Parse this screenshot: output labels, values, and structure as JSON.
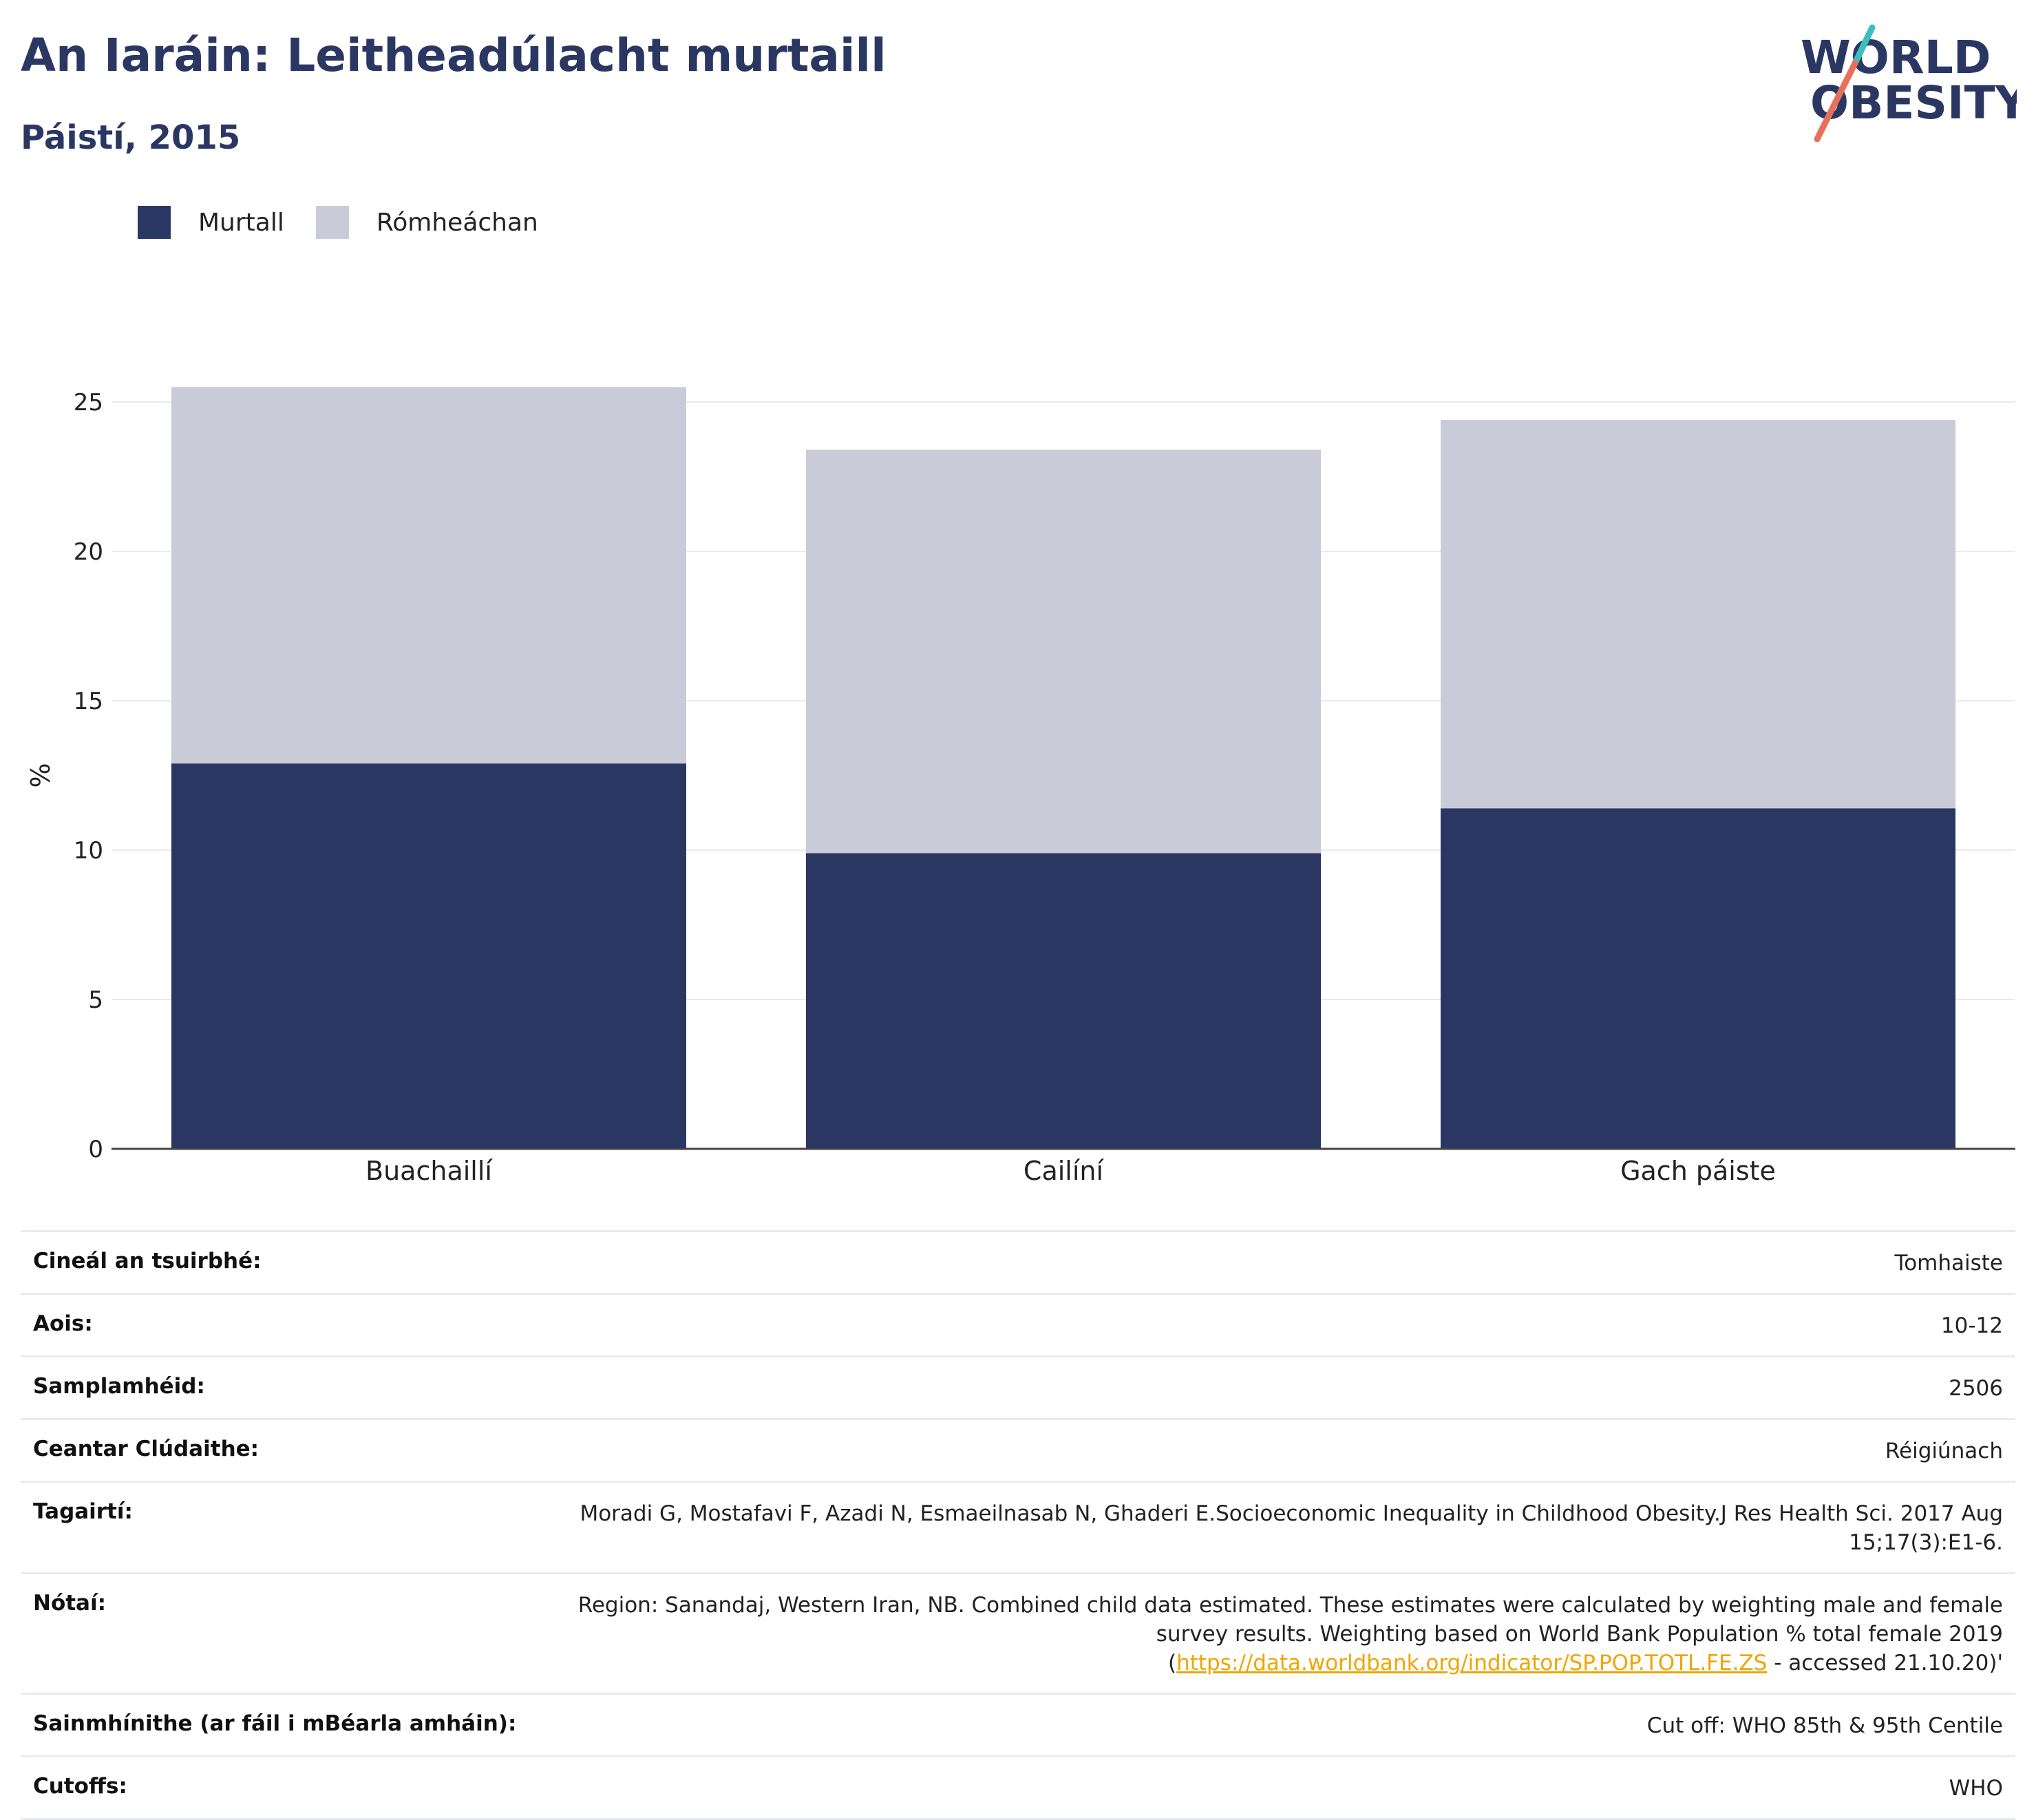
{
  "header": {
    "title": "An Iaráin: Leitheadúlacht murtaill",
    "subtitle": "Páistí, 2015"
  },
  "logo": {
    "line1": "WORLD",
    "line2": "OBESITY"
  },
  "colors": {
    "murtall": "#2b3763",
    "romheachan": "#c9ccd8",
    "accent_teal": "#3bbfc0",
    "accent_coral": "#e8705a"
  },
  "chart_data": {
    "type": "bar",
    "stacked": true,
    "categories": [
      "Buachaillí",
      "Cailíní",
      "Gach páiste"
    ],
    "series": [
      {
        "name": "Murtall",
        "values": [
          12.9,
          9.9,
          11.4
        ]
      },
      {
        "name": "Rómheáchan",
        "values": [
          12.6,
          13.5,
          13.0
        ]
      }
    ],
    "ylabel": "%",
    "ylim": [
      0,
      26.5
    ],
    "yticks": [
      0,
      5,
      10,
      15,
      20,
      25
    ],
    "grid": true,
    "legend_position": "top-left"
  },
  "info": [
    {
      "key": "Cineál an tsuirbhé:",
      "value": "Tomhaiste"
    },
    {
      "key": "Aois:",
      "value": "10-12"
    },
    {
      "key": "Samplamhéid:",
      "value": "2506"
    },
    {
      "key": "Ceantar Clúdaithe:",
      "value": "Réigiúnach"
    },
    {
      "key": "Tagairtí:",
      "value": "Moradi G, Mostafavi F, Azadi N, Esmaeilnasab N, Ghaderi E.Socioeconomic Inequality in Childhood Obesity.J Res Health Sci. 2017 Aug 15;17(3):E1-6."
    },
    {
      "key": "Nótaí:",
      "value_pre": "Region: Sanandaj, Western Iran, NB. Combined child data estimated. These estimates were calculated by weighting male and female survey results. Weighting based on World Bank Population % total female 2019 (",
      "link": "https://data.worldbank.org/indicator/SP.POP.TOTL.FE.ZS",
      "value_post": " - accessed 21.10.20)'"
    },
    {
      "key": "Sainmhínithe (ar fáil i mBéarla amháin):",
      "value": "Cut off: WHO 85th & 95th Centile"
    },
    {
      "key": "Cutoffs:",
      "value": "WHO"
    }
  ]
}
